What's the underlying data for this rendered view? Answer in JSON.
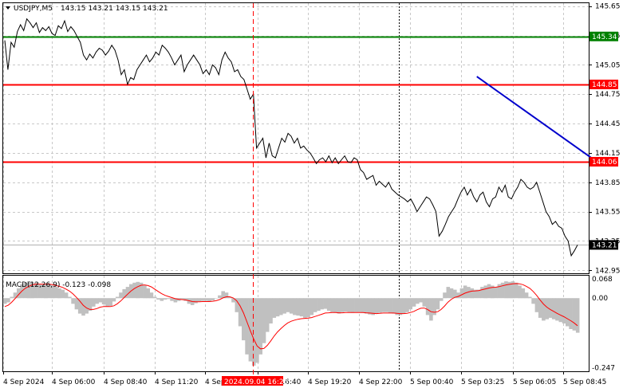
{
  "header": {
    "symbol": "USDJPY,M5",
    "ohlc": "143.15 143.21 143.15 143.21",
    "macd_label": "MACD(12,26,9) -0.123 -0.098"
  },
  "colors": {
    "price_line": "#000000",
    "support_resistance": "#ff0000",
    "target_line": "#008000",
    "trend_line": "#0000cc",
    "histogram": "#c0c0c0",
    "signal": "#ff0000",
    "marker": "#ff0000",
    "grid": "#c8c8c8"
  },
  "chart_data": [
    {
      "type": "line",
      "title": "USDJPY,M5",
      "ylim": [
        142.92,
        145.68
      ],
      "y_ticks": [
        "145.65",
        "145.35",
        "145.05",
        "144.75",
        "144.45",
        "144.15",
        "143.85",
        "143.55",
        "143.25",
        "142.95"
      ],
      "x_ticks": [
        "4 Sep 2024",
        "4 Sep 06:00",
        "4 Sep 08:40",
        "4 Sep 11:20",
        "4 Sep 1",
        "4 Sep 16:40",
        "4 Sep 19:20",
        "4 Sep 22:00",
        "5 Sep 00:40",
        "5 Sep 03:25",
        "5 Sep 06:05",
        "5 Sep 08:45"
      ],
      "grid": true,
      "levels": [
        {
          "value": 145.34,
          "label": "145.34",
          "style": "green"
        },
        {
          "value": 144.85,
          "label": "144.85",
          "style": "red"
        },
        {
          "value": 144.06,
          "label": "144.06",
          "style": "red"
        }
      ],
      "current_price": {
        "value": 143.21,
        "label": "143.21"
      },
      "marker_time": "2024.09.04 16:25",
      "trend_line": {
        "from": [
          150,
          144.93
        ],
        "to": [
          189,
          144.04
        ]
      },
      "series": [
        {
          "values": [
            145.3,
            145.0,
            145.28,
            145.23,
            145.39,
            145.46,
            145.4,
            145.52,
            145.48,
            145.43,
            145.48,
            145.38,
            145.43,
            145.4,
            145.44,
            145.37,
            145.35,
            145.45,
            145.42,
            145.5,
            145.39,
            145.44,
            145.4,
            145.34,
            145.28,
            145.15,
            145.1,
            145.16,
            145.12,
            145.18,
            145.22,
            145.2,
            145.15,
            145.19,
            145.25,
            145.2,
            145.1,
            144.95,
            145.0,
            144.85,
            144.92,
            144.9,
            145.0,
            145.05,
            145.1,
            145.15,
            145.08,
            145.12,
            145.18,
            145.15,
            145.25,
            145.22,
            145.18,
            145.12,
            145.05,
            145.1,
            145.15,
            144.98,
            145.05,
            145.1,
            145.15,
            145.1,
            145.05,
            144.96,
            145.0,
            144.95,
            145.05,
            145.02,
            144.95,
            145.1,
            145.18,
            145.12,
            145.08,
            144.98,
            145.0,
            144.93,
            144.9,
            144.8,
            144.7,
            144.75,
            144.2,
            144.25,
            144.3,
            144.1,
            144.25,
            144.12,
            144.1,
            144.2,
            144.3,
            144.26,
            144.35,
            144.32,
            144.25,
            144.3,
            144.2,
            144.22,
            144.18,
            144.15,
            144.1,
            144.04,
            144.08,
            144.1,
            144.06,
            144.12,
            144.05,
            144.1,
            144.04,
            144.08,
            144.12,
            144.06,
            144.05,
            144.1,
            144.08,
            143.98,
            143.95,
            143.88,
            143.9,
            143.92,
            143.82,
            143.86,
            143.83,
            143.8,
            143.85,
            143.78,
            143.75,
            143.72,
            143.7,
            143.68,
            143.65,
            143.68,
            143.62,
            143.55,
            143.6,
            143.65,
            143.7,
            143.68,
            143.62,
            143.55,
            143.3,
            143.35,
            143.42,
            143.5,
            143.55,
            143.6,
            143.68,
            143.75,
            143.8,
            143.72,
            143.78,
            143.7,
            143.65,
            143.72,
            143.75,
            143.65,
            143.6,
            143.68,
            143.7,
            143.8,
            143.75,
            143.82,
            143.7,
            143.68,
            143.75,
            143.8,
            143.88,
            143.85,
            143.8,
            143.78,
            143.8,
            143.85,
            143.75,
            143.65,
            143.55,
            143.5,
            143.42,
            143.45,
            143.4,
            143.38,
            143.3,
            143.25,
            143.1,
            143.15,
            143.21
          ],
          "color": "#000000"
        }
      ]
    },
    {
      "type": "bar",
      "title": "MACD(12,26,9) -0.123 -0.098",
      "ylim": [
        -0.26,
        0.08
      ],
      "y_ticks": [
        "0.068",
        "0.00",
        "-0.247"
      ],
      "series": [
        {
          "name": "MACD",
          "values": [
            -0.02,
            -0.015,
            0.005,
            0.02,
            0.035,
            0.05,
            0.055,
            0.06,
            0.058,
            0.055,
            0.05,
            0.048,
            0.052,
            0.05,
            0.045,
            0.04,
            0.035,
            0.03,
            0.02,
            0.005,
            -0.02,
            -0.04,
            -0.055,
            -0.062,
            -0.055,
            -0.045,
            -0.03,
            -0.02,
            -0.015,
            -0.022,
            -0.03,
            -0.028,
            -0.012,
            0.005,
            0.02,
            0.032,
            0.04,
            0.05,
            0.055,
            0.058,
            0.055,
            0.045,
            0.035,
            0.02,
            0.005,
            -0.005,
            -0.01,
            -0.005,
            -0.003,
            -0.01,
            -0.015,
            -0.01,
            -0.005,
            -0.01,
            -0.02,
            -0.025,
            -0.018,
            -0.012,
            -0.01,
            -0.01,
            -0.012,
            -0.008,
            0.0,
            0.01,
            0.025,
            0.02,
            0.005,
            -0.015,
            -0.05,
            -0.1,
            -0.15,
            -0.2,
            -0.225,
            -0.24,
            -0.23,
            -0.2,
            -0.16,
            -0.12,
            -0.09,
            -0.07,
            -0.065,
            -0.06,
            -0.055,
            -0.05,
            -0.055,
            -0.06,
            -0.062,
            -0.065,
            -0.07,
            -0.068,
            -0.06,
            -0.05,
            -0.045,
            -0.04,
            -0.038,
            -0.045,
            -0.05,
            -0.052,
            -0.055,
            -0.05,
            -0.048,
            -0.05,
            -0.052,
            -0.05,
            -0.05,
            -0.052,
            -0.055,
            -0.058,
            -0.06,
            -0.056,
            -0.052,
            -0.05,
            -0.05,
            -0.052,
            -0.055,
            -0.06,
            -0.06,
            -0.055,
            -0.05,
            -0.04,
            -0.03,
            -0.02,
            -0.015,
            -0.03,
            -0.06,
            -0.08,
            -0.06,
            -0.04,
            -0.01,
            0.02,
            0.04,
            0.035,
            0.03,
            0.02,
            0.035,
            0.045,
            0.04,
            0.035,
            0.03,
            0.03,
            0.04,
            0.045,
            0.05,
            0.045,
            0.04,
            0.05,
            0.055,
            0.06,
            0.058,
            0.06,
            0.055,
            0.045,
            0.035,
            0.02,
            0.005,
            -0.02,
            -0.05,
            -0.07,
            -0.08,
            -0.075,
            -0.07,
            -0.075,
            -0.08,
            -0.085,
            -0.09,
            -0.1,
            -0.11,
            -0.115,
            -0.123
          ],
          "color": "#c0c0c0"
        },
        {
          "name": "Signal",
          "values": [
            -0.03,
            -0.025,
            -0.015,
            -0.002,
            0.012,
            0.025,
            0.035,
            0.042,
            0.047,
            0.05,
            0.05,
            0.05,
            0.05,
            0.05,
            0.048,
            0.045,
            0.042,
            0.038,
            0.032,
            0.025,
            0.015,
            0.003,
            -0.01,
            -0.025,
            -0.035,
            -0.04,
            -0.04,
            -0.037,
            -0.032,
            -0.03,
            -0.03,
            -0.03,
            -0.027,
            -0.02,
            -0.01,
            0.002,
            0.014,
            0.025,
            0.034,
            0.041,
            0.046,
            0.047,
            0.045,
            0.04,
            0.032,
            0.024,
            0.016,
            0.01,
            0.006,
            0.002,
            -0.002,
            -0.004,
            -0.005,
            -0.006,
            -0.009,
            -0.012,
            -0.013,
            -0.013,
            -0.012,
            -0.012,
            -0.012,
            -0.011,
            -0.009,
            -0.005,
            0.001,
            0.005,
            0.005,
            0.001,
            -0.009,
            -0.027,
            -0.052,
            -0.083,
            -0.115,
            -0.145,
            -0.17,
            -0.18,
            -0.179,
            -0.168,
            -0.152,
            -0.135,
            -0.12,
            -0.108,
            -0.097,
            -0.088,
            -0.082,
            -0.078,
            -0.075,
            -0.073,
            -0.072,
            -0.071,
            -0.069,
            -0.065,
            -0.061,
            -0.057,
            -0.053,
            -0.052,
            -0.051,
            -0.051,
            -0.052,
            -0.052,
            -0.051,
            -0.051,
            -0.051,
            -0.051,
            -0.051,
            -0.051,
            -0.052,
            -0.053,
            -0.054,
            -0.055,
            -0.054,
            -0.053,
            -0.053,
            -0.053,
            -0.053,
            -0.054,
            -0.055,
            -0.055,
            -0.054,
            -0.051,
            -0.047,
            -0.041,
            -0.036,
            -0.035,
            -0.04,
            -0.048,
            -0.05,
            -0.048,
            -0.04,
            -0.028,
            -0.014,
            -0.004,
            0.003,
            0.006,
            0.012,
            0.018,
            0.022,
            0.025,
            0.026,
            0.027,
            0.03,
            0.033,
            0.036,
            0.038,
            0.039,
            0.041,
            0.044,
            0.047,
            0.049,
            0.051,
            0.052,
            0.051,
            0.048,
            0.042,
            0.035,
            0.024,
            0.01,
            -0.006,
            -0.021,
            -0.032,
            -0.04,
            -0.047,
            -0.054,
            -0.06,
            -0.066,
            -0.073,
            -0.08,
            -0.088,
            -0.098
          ],
          "color": "#ff0000"
        }
      ]
    }
  ]
}
